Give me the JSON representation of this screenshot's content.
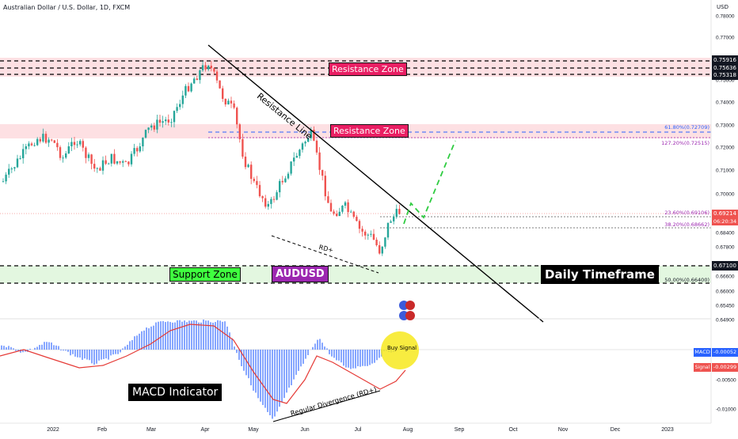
{
  "header": {
    "title": "Australian Dollar / U.S. Dollar, 1D, FXCM"
  },
  "axis": {
    "currency": "USD",
    "price_ticks": [
      "0.78000",
      "0.77000",
      "0.76000",
      "0.75000",
      "0.74000",
      "0.73000",
      "0.72000",
      "0.71000",
      "0.70000",
      "0.69000",
      "0.68400",
      "0.67800",
      "0.66600",
      "0.66000",
      "0.65450",
      "0.64900"
    ],
    "macd_ticks": [
      "-0.00500",
      "-0.01000"
    ],
    "time_ticks": [
      "2022",
      "Feb",
      "Mar",
      "Apr",
      "May",
      "Jun",
      "Jul",
      "Aug",
      "Sep",
      "Oct",
      "Nov",
      "Dec",
      "2023"
    ]
  },
  "badges": {
    "r1": "0.75916",
    "r2": "0.75636",
    "r3": "0.75318",
    "last_price": "0.69214",
    "countdown": "06:20:34",
    "support": "0.67100",
    "macd_label": "MACD",
    "macd_value": "-0.00052",
    "signal_label": "Signal",
    "signal_value": "-0.00299"
  },
  "fib": {
    "f618": "61.80%(0.72709)",
    "f1272": "127.20%(0.72515)",
    "f236": "23.60%(0.69106)",
    "f382": "38.20%(0.68662)",
    "f500": "50.00%(0.66400)"
  },
  "annotations": {
    "resistance_zone_top": "Resistance Zone",
    "resistance_zone_mid": "Resistance Zone",
    "resistance_line": "Resistance Line",
    "support_zone": "Support Zone",
    "symbol": "AUDUSD",
    "timeframe": "Daily Timeframe",
    "macd_indicator": "MACD Indicator",
    "regular_divergence": "Regular Divergence (RD+)",
    "rd_plus": "RD+",
    "buy_signal": "Buy Signal"
  },
  "colors": {
    "up": "#26a69a",
    "down": "#ef5350",
    "macd_hist": "#2962ff",
    "signal_line": "#e53935",
    "zone_red_fill": "#fde0e3",
    "zone_green_fill": "#e3f7e0",
    "badge_red": "#e91e63",
    "badge_purple": "#9c27b0",
    "badge_green": "#3fff3f",
    "dashed_green": "#2ecc40",
    "buy_circle": "#f7e91e"
  },
  "chart_data": {
    "type": "candlestick",
    "title": "Australian Dollar / U.S. Dollar, 1D, FXCM",
    "x": [
      "2022",
      "Feb",
      "Mar",
      "Apr",
      "May",
      "Jun",
      "Jul",
      "Aug"
    ],
    "close": [
      0.719,
      0.704,
      0.748,
      0.755,
      0.705,
      0.72,
      0.68,
      0.6921
    ],
    "ylim": [
      0.649,
      0.78
    ],
    "horizontal_levels": [
      0.75916,
      0.75636,
      0.75318,
      0.72709,
      0.72515,
      0.69106,
      0.68662,
      0.671,
      0.664
    ],
    "fib_labels": [
      "61.80%(0.72709)",
      "127.20%(0.72515)",
      "23.60%(0.69106)",
      "38.20%(0.68662)",
      "50.00%(0.66400)"
    ],
    "last_price": 0.69214,
    "macd": {
      "macd": -0.00052,
      "signal": -0.00299,
      "ticks": [
        -0.005,
        -0.01
      ]
    }
  }
}
